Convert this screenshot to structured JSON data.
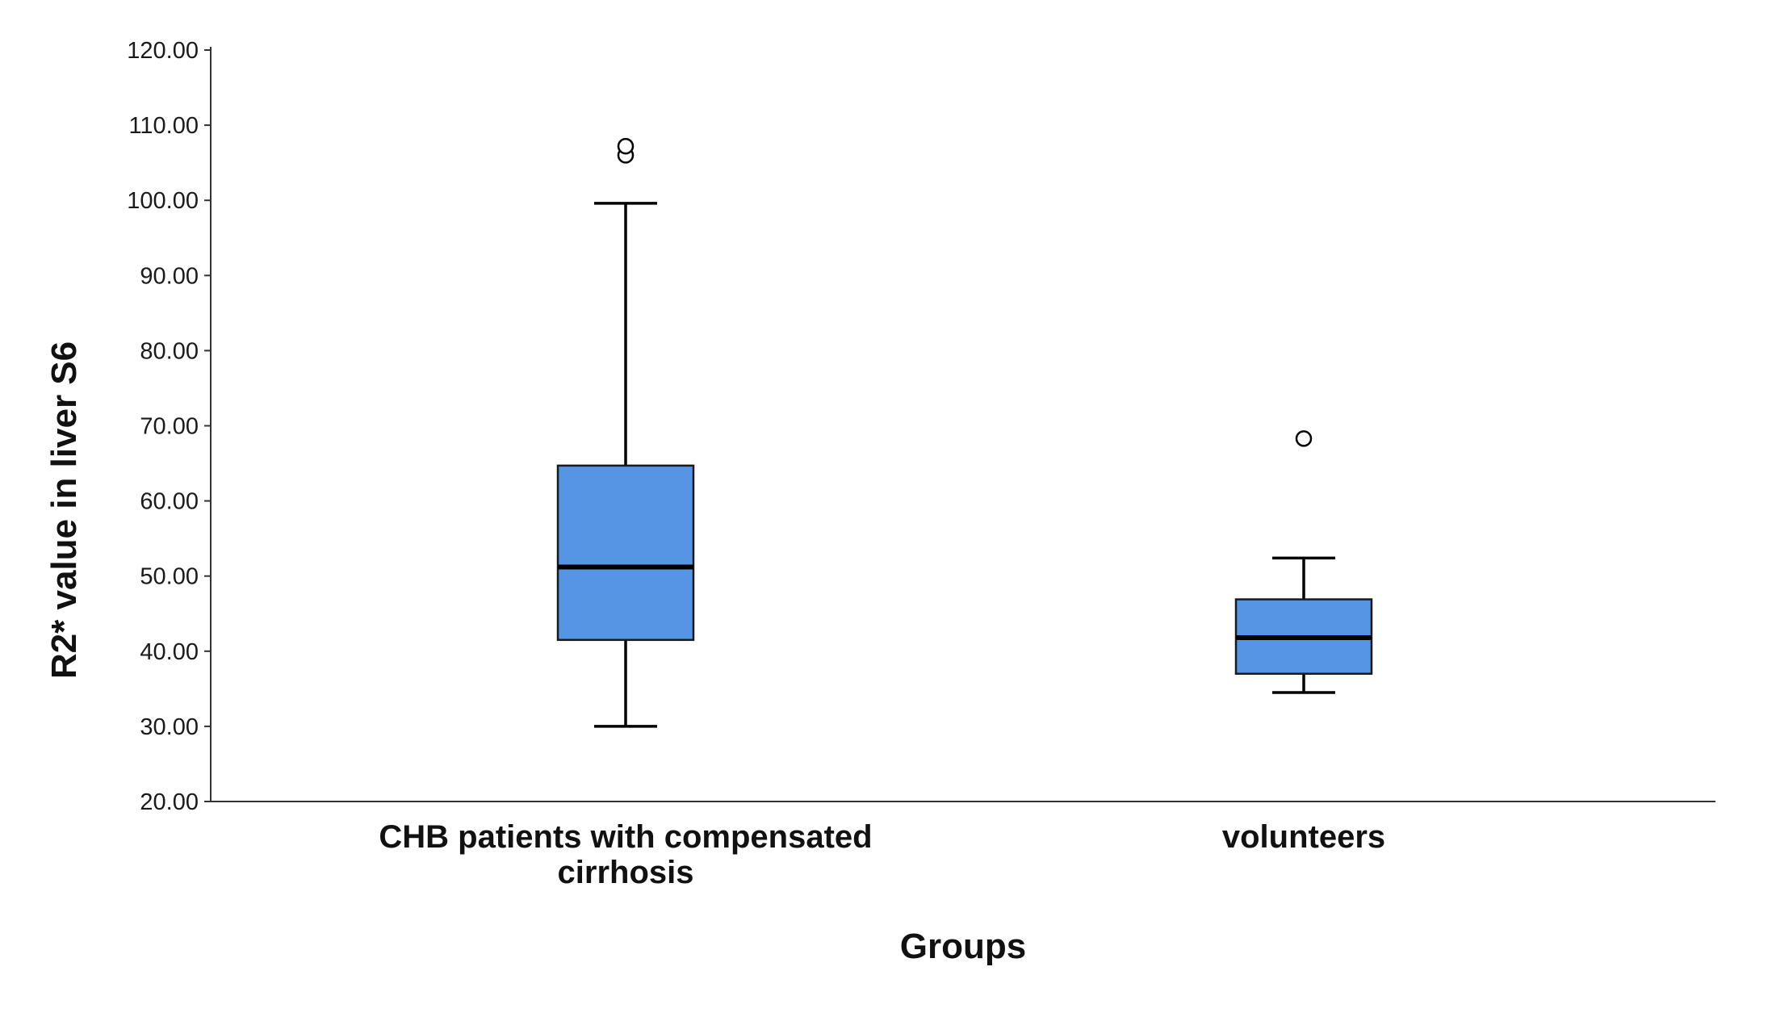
{
  "chart_data": {
    "type": "boxplot",
    "title": "",
    "xlabel": "Groups",
    "ylabel": "R2* value in liver S6",
    "ylim": [
      20,
      120
    ],
    "y_ticks": [
      20,
      30,
      40,
      50,
      60,
      70,
      80,
      90,
      100,
      110,
      120
    ],
    "y_tick_labels": [
      "20.00",
      "30.00",
      "40.00",
      "50.00",
      "60.00",
      "70.00",
      "80.00",
      "90.00",
      "100.00",
      "110.00",
      "120.00"
    ],
    "grid": false,
    "box_color": "#5595e4",
    "categories": [
      {
        "label_lines": [
          "CHB patients with compensated",
          "cirrhosis"
        ],
        "whisker_low": 30.0,
        "q1": 41.5,
        "median": 51.2,
        "q3": 64.7,
        "whisker_high": 99.6,
        "outliers": [
          106.0,
          107.2
        ]
      },
      {
        "label_lines": [
          "volunteers"
        ],
        "whisker_low": 34.5,
        "q1": 37.0,
        "median": 41.8,
        "q3": 46.9,
        "whisker_high": 52.4,
        "outliers": [
          68.3
        ]
      }
    ]
  }
}
